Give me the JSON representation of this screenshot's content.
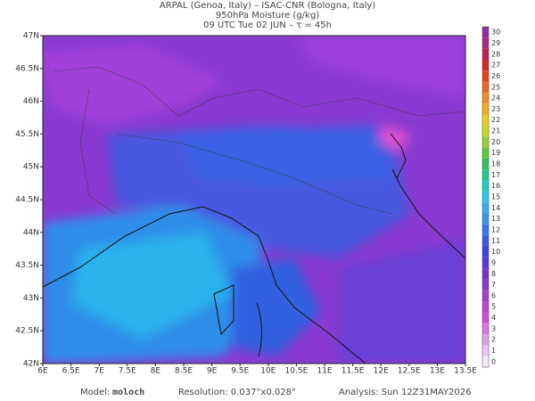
{
  "header": {
    "line1": "ARPAL (Genoa, Italy)  –  ISAC-CNR (Bologna, Italy)",
    "line2": "950hPa Moisture (g/kg)",
    "line3": "09 UTC Tue 02 JUN  –  τ = 45h"
  },
  "map": {
    "lon_labels": [
      "6E",
      "6.5E",
      "7E",
      "7.5E",
      "8E",
      "8.5E",
      "9E",
      "9.5E",
      "10E",
      "10.5E",
      "11E",
      "11.5E",
      "12E",
      "12.5E",
      "13E",
      "13.5E"
    ],
    "lat_labels": [
      "47N",
      "46.5N",
      "46N",
      "45.5N",
      "45N",
      "44.5N",
      "44N",
      "43.5N",
      "43N",
      "42.5N",
      "42N"
    ]
  },
  "colorbar": {
    "labels": [
      0,
      1,
      2,
      3,
      4,
      5,
      6,
      7,
      8,
      9,
      10,
      11,
      12,
      13,
      14,
      15,
      16,
      17,
      18,
      19,
      20,
      21,
      22,
      23,
      24,
      25,
      26,
      27,
      28,
      29,
      30
    ],
    "colors": [
      "#f4ecf8",
      "#e8c8f0",
      "#e0a0e8",
      "#d878e0",
      "#d050d8",
      "#b848d0",
      "#a040d0",
      "#8838d0",
      "#7038d0",
      "#5838d8",
      "#4040e0",
      "#3858e8",
      "#3878f0",
      "#3898f0",
      "#30b0f0",
      "#28c8e8",
      "#20d0c0",
      "#20c890",
      "#30c060",
      "#60c840",
      "#98d030",
      "#c8d828",
      "#e8d020",
      "#f0b020",
      "#f09020",
      "#f06820",
      "#e84020",
      "#d82828",
      "#c02050",
      "#b02880",
      "#9030a0"
    ]
  },
  "footer": {
    "model_label": "Model:",
    "model": "moloch",
    "resolution": "Resolution: 0.037°x0.028°",
    "analysis": "Analysis: Sun 12Z31MAY2026"
  }
}
